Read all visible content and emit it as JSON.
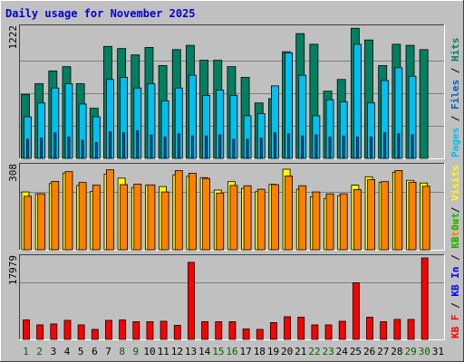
{
  "chart_data": {
    "type": "bar",
    "title": "Daily usage for November 2025",
    "categories": [
      "1",
      "2",
      "3",
      "4",
      "5",
      "6",
      "7",
      "8",
      "9",
      "10",
      "11",
      "12",
      "13",
      "14",
      "15",
      "16",
      "17",
      "18",
      "19",
      "20",
      "21",
      "22",
      "23",
      "24",
      "25",
      "26",
      "27",
      "28",
      "29",
      "30",
      "31"
    ],
    "weekend_days": [
      "1",
      "2",
      "8",
      "9",
      "15",
      "16",
      "22",
      "23",
      "29",
      "30"
    ],
    "colors": {
      "background": "#c0c0c0",
      "title": "#0000cc",
      "hits": "#008060",
      "files": "#00c0f0",
      "pages": "#0060c0",
      "visits": "#ffff00",
      "sites": "#ff8000",
      "kb_in": "#0000ff",
      "kb_out": "#00c000",
      "kb_f": "#ff0000",
      "weekend_label": "#006000",
      "weekday_label": "#000000"
    },
    "panels": [
      {
        "ymax_label": "1222",
        "ymax": 1222,
        "legend": [
          {
            "text": "Pages",
            "color": "#00c0f0"
          },
          {
            "text": " / ",
            "color": "#000000"
          },
          {
            "text": "Files",
            "color": "#0060c0"
          },
          {
            "text": " / ",
            "color": "#000000"
          },
          {
            "text": "Hits",
            "color": "#008060"
          }
        ],
        "series": [
          {
            "name": "Hits",
            "color": "#008060",
            "values": [
              600,
              700,
              820,
              860,
              700,
              470,
              1050,
              1030,
              970,
              1040,
              870,
              1020,
              1060,
              920,
              920,
              860,
              760,
              520,
              560,
              1000,
              1170,
              1070,
              630,
              740,
              1220,
              1110,
              870,
              1070,
              1060,
              1020,
              0
            ]
          },
          {
            "name": "Files",
            "color": "#00c0f0",
            "values": [
              390,
              520,
              660,
              700,
              510,
              390,
              740,
              760,
              660,
              700,
              540,
              660,
              780,
              590,
              640,
              590,
              400,
              420,
              680,
              990,
              780,
              400,
              550,
              530,
              1070,
              520,
              730,
              850,
              770,
              0,
              0
            ]
          },
          {
            "name": "Pages",
            "color": "#0060c0",
            "values": [
              180,
              190,
              240,
              200,
              170,
              150,
              250,
              240,
              260,
              220,
              200,
              230,
              210,
              210,
              220,
              180,
              180,
              190,
              240,
              230,
              210,
              220,
              200,
              210,
              200,
              200,
              240,
              230,
              220,
              0,
              0
            ]
          }
        ]
      },
      {
        "ymax_label": "308",
        "ymax": 308,
        "legend": [
          {
            "text": "Sites",
            "color": "#ff8000"
          },
          {
            "text": " / ",
            "color": "#000000"
          },
          {
            "text": "Visits",
            "color": "#ffff00"
          }
        ],
        "series": [
          {
            "name": "Visits",
            "color": "#ffff00",
            "values": [
              214,
              207,
              245,
              284,
              238,
              216,
              280,
              265,
              230,
              239,
              234,
              277,
              272,
              267,
              221,
              252,
              227,
              215,
              242,
              298,
              224,
              196,
              190,
              200,
              239,
              270,
              250,
              287,
              257,
              247,
              0
            ]
          },
          {
            "name": "Sites",
            "color": "#ff8000",
            "values": [
              198,
              207,
              253,
              289,
              249,
              239,
              296,
              241,
              243,
              240,
              214,
              293,
              283,
              264,
              210,
              238,
              237,
              224,
              241,
              273,
              237,
              214,
              207,
              207,
              223,
              260,
              252,
              293,
              250,
              235,
              0
            ]
          }
        ]
      },
      {
        "ymax_label": "17979",
        "ymax": 17979,
        "legend": [
          {
            "text": "KB F",
            "color": "#ff0000"
          },
          {
            "text": " / ",
            "color": "#000000"
          },
          {
            "text": "KB In",
            "color": "#0000ff"
          },
          {
            "text": " / ",
            "color": "#000000"
          },
          {
            "text": "KB Out",
            "color": "#00c000"
          }
        ],
        "series": [
          {
            "name": "KB F",
            "color": "#ff0000",
            "values": [
              4300,
              3200,
              3400,
              4200,
              3200,
              2200,
              4200,
              4300,
              3900,
              3900,
              4000,
              3100,
              17000,
              3900,
              3900,
              3900,
              2300,
              2200,
              3700,
              5000,
              4900,
              3200,
              3200,
              4000,
              12500,
              4900,
              3900,
              4400,
              4400,
              17979,
              0
            ]
          }
        ]
      }
    ]
  }
}
